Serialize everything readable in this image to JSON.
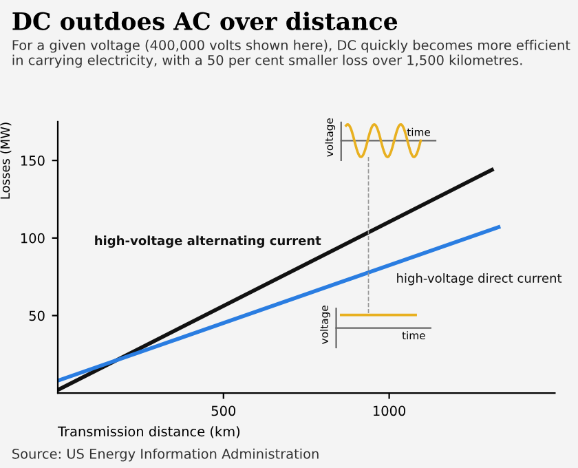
{
  "chart_data": {
    "type": "line",
    "title": "DC outdoes AC over distance",
    "subtitle": "For a given voltage (400,000 volts shown here), DC quickly becomes more efficient in carrying electricity, with a 50 per cent smaller loss over 1,500 kilometres.",
    "xlabel": "Transmission distance (km)",
    "ylabel": "Losses (MW)",
    "series": [
      {
        "name": "high-voltage alternating current",
        "color": "#111111",
        "x": [
          0,
          1310
        ],
        "values": [
          2,
          144
        ]
      },
      {
        "name": "high-voltage direct current",
        "color": "#2a7de1",
        "x": [
          0,
          1330
        ],
        "values": [
          8,
          107
        ]
      }
    ],
    "annotations": [
      "voltage",
      "time",
      "voltage",
      "time",
      "Source: US Energy Information Administration"
    ],
    "xlim": [
      0,
      1500
    ],
    "ylim": [
      0,
      175
    ],
    "xticks": [
      500,
      1000
    ],
    "yticks": [
      50,
      100,
      150
    ],
    "grid": false,
    "legend": false,
    "marker": "none",
    "line_style": "solid"
  }
}
